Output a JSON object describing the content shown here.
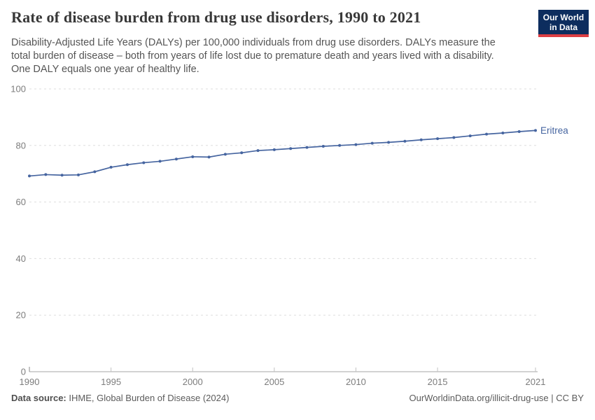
{
  "header": {
    "title": "Rate of disease burden from drug use disorders, 1990 to 2021",
    "subtitle_lines": [
      "Disability-Adjusted Life Years (DALYs) per 100,000 individuals from drug use disorders. DALYs measure the",
      "total burden of disease – both from years of life lost due to premature death and years lived with a disability.",
      "One DALY equals one year of healthy life."
    ],
    "logo": {
      "line1": "Our World",
      "line2": "in Data",
      "bg_color": "#0d2d5e",
      "accent_color": "#dc3e43"
    }
  },
  "chart_data": {
    "type": "line",
    "title": "Rate of disease burden from drug use disorders, 1990 to 2021",
    "xlabel": "",
    "ylabel": "",
    "xlim": [
      1990,
      2021
    ],
    "ylim": [
      0,
      100
    ],
    "x_ticks": [
      1990,
      1995,
      2000,
      2005,
      2010,
      2015,
      2021
    ],
    "y_ticks": [
      0,
      20,
      40,
      60,
      80,
      100
    ],
    "grid": "horizontal-dashed",
    "legend_position": "end-of-line-label",
    "series": [
      {
        "name": "Eritrea",
        "color": "#4665a0",
        "x": [
          1990,
          1991,
          1992,
          1993,
          1994,
          1995,
          1996,
          1997,
          1998,
          1999,
          2000,
          2001,
          2002,
          2003,
          2004,
          2005,
          2006,
          2007,
          2008,
          2009,
          2010,
          2011,
          2012,
          2013,
          2014,
          2015,
          2016,
          2017,
          2018,
          2019,
          2020,
          2021
        ],
        "values": [
          69.2,
          69.7,
          69.5,
          69.6,
          70.7,
          72.3,
          73.2,
          73.9,
          74.4,
          75.2,
          76.0,
          75.9,
          76.9,
          77.4,
          78.2,
          78.5,
          78.9,
          79.3,
          79.7,
          80.0,
          80.3,
          80.8,
          81.1,
          81.5,
          82.0,
          82.4,
          82.8,
          83.4,
          84.0,
          84.4,
          84.9,
          85.3
        ]
      }
    ]
  },
  "footer": {
    "source_label": "Data source:",
    "source_text": " IHME, Global Burden of Disease (2024)",
    "credit_text": "OurWorldinData.org/illicit-drug-use | CC BY"
  },
  "colors": {
    "line": "#4665a0",
    "grid": "#dedede",
    "axis": "#a6a6a6",
    "axis_tick": "#c2c2c2",
    "axis_endcap": "#8a8a8a",
    "tick_label": "#7d7d7d",
    "title": "#383838",
    "subtitle": "#555555",
    "footer": "#5b5b5b"
  }
}
